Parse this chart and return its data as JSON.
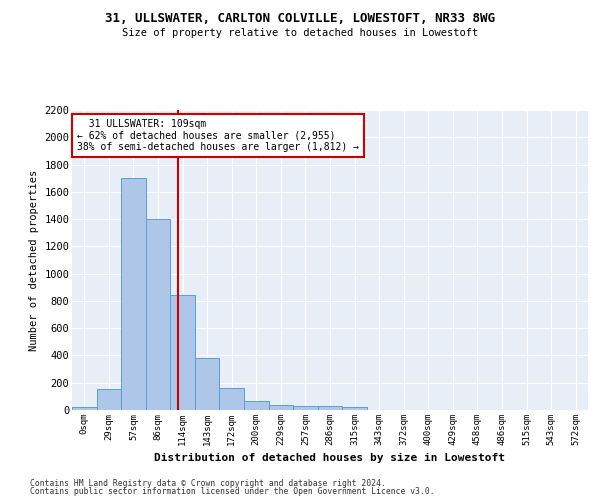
{
  "title1": "31, ULLSWATER, CARLTON COLVILLE, LOWESTOFT, NR33 8WG",
  "title2": "Size of property relative to detached houses in Lowestoft",
  "xlabel": "Distribution of detached houses by size in Lowestoft",
  "ylabel": "Number of detached properties",
  "bin_labels": [
    "0sqm",
    "29sqm",
    "57sqm",
    "86sqm",
    "114sqm",
    "143sqm",
    "172sqm",
    "200sqm",
    "229sqm",
    "257sqm",
    "286sqm",
    "315sqm",
    "343sqm",
    "372sqm",
    "400sqm",
    "429sqm",
    "458sqm",
    "486sqm",
    "515sqm",
    "543sqm",
    "572sqm"
  ],
  "bar_values": [
    20,
    155,
    1700,
    1400,
    840,
    380,
    165,
    65,
    40,
    30,
    30,
    20,
    0,
    0,
    0,
    0,
    0,
    0,
    0,
    0,
    0
  ],
  "bar_color": "#aec6e8",
  "bar_edgecolor": "#5a9fd4",
  "ylim": [
    0,
    2200
  ],
  "yticks": [
    0,
    200,
    400,
    600,
    800,
    1000,
    1200,
    1400,
    1600,
    1800,
    2000,
    2200
  ],
  "property_label": "31 ULLSWATER: 109sqm",
  "pct_smaller": "62% of detached houses are smaller (2,955)",
  "pct_larger": "38% of semi-detached houses are larger (1,812)",
  "annotation_box_color": "#ffffff",
  "annotation_border_color": "#cc0000",
  "red_line_color": "#cc0000",
  "background_color": "#e8eef8",
  "footer1": "Contains HM Land Registry data © Crown copyright and database right 2024.",
  "footer2": "Contains public sector information licensed under the Open Government Licence v3.0."
}
